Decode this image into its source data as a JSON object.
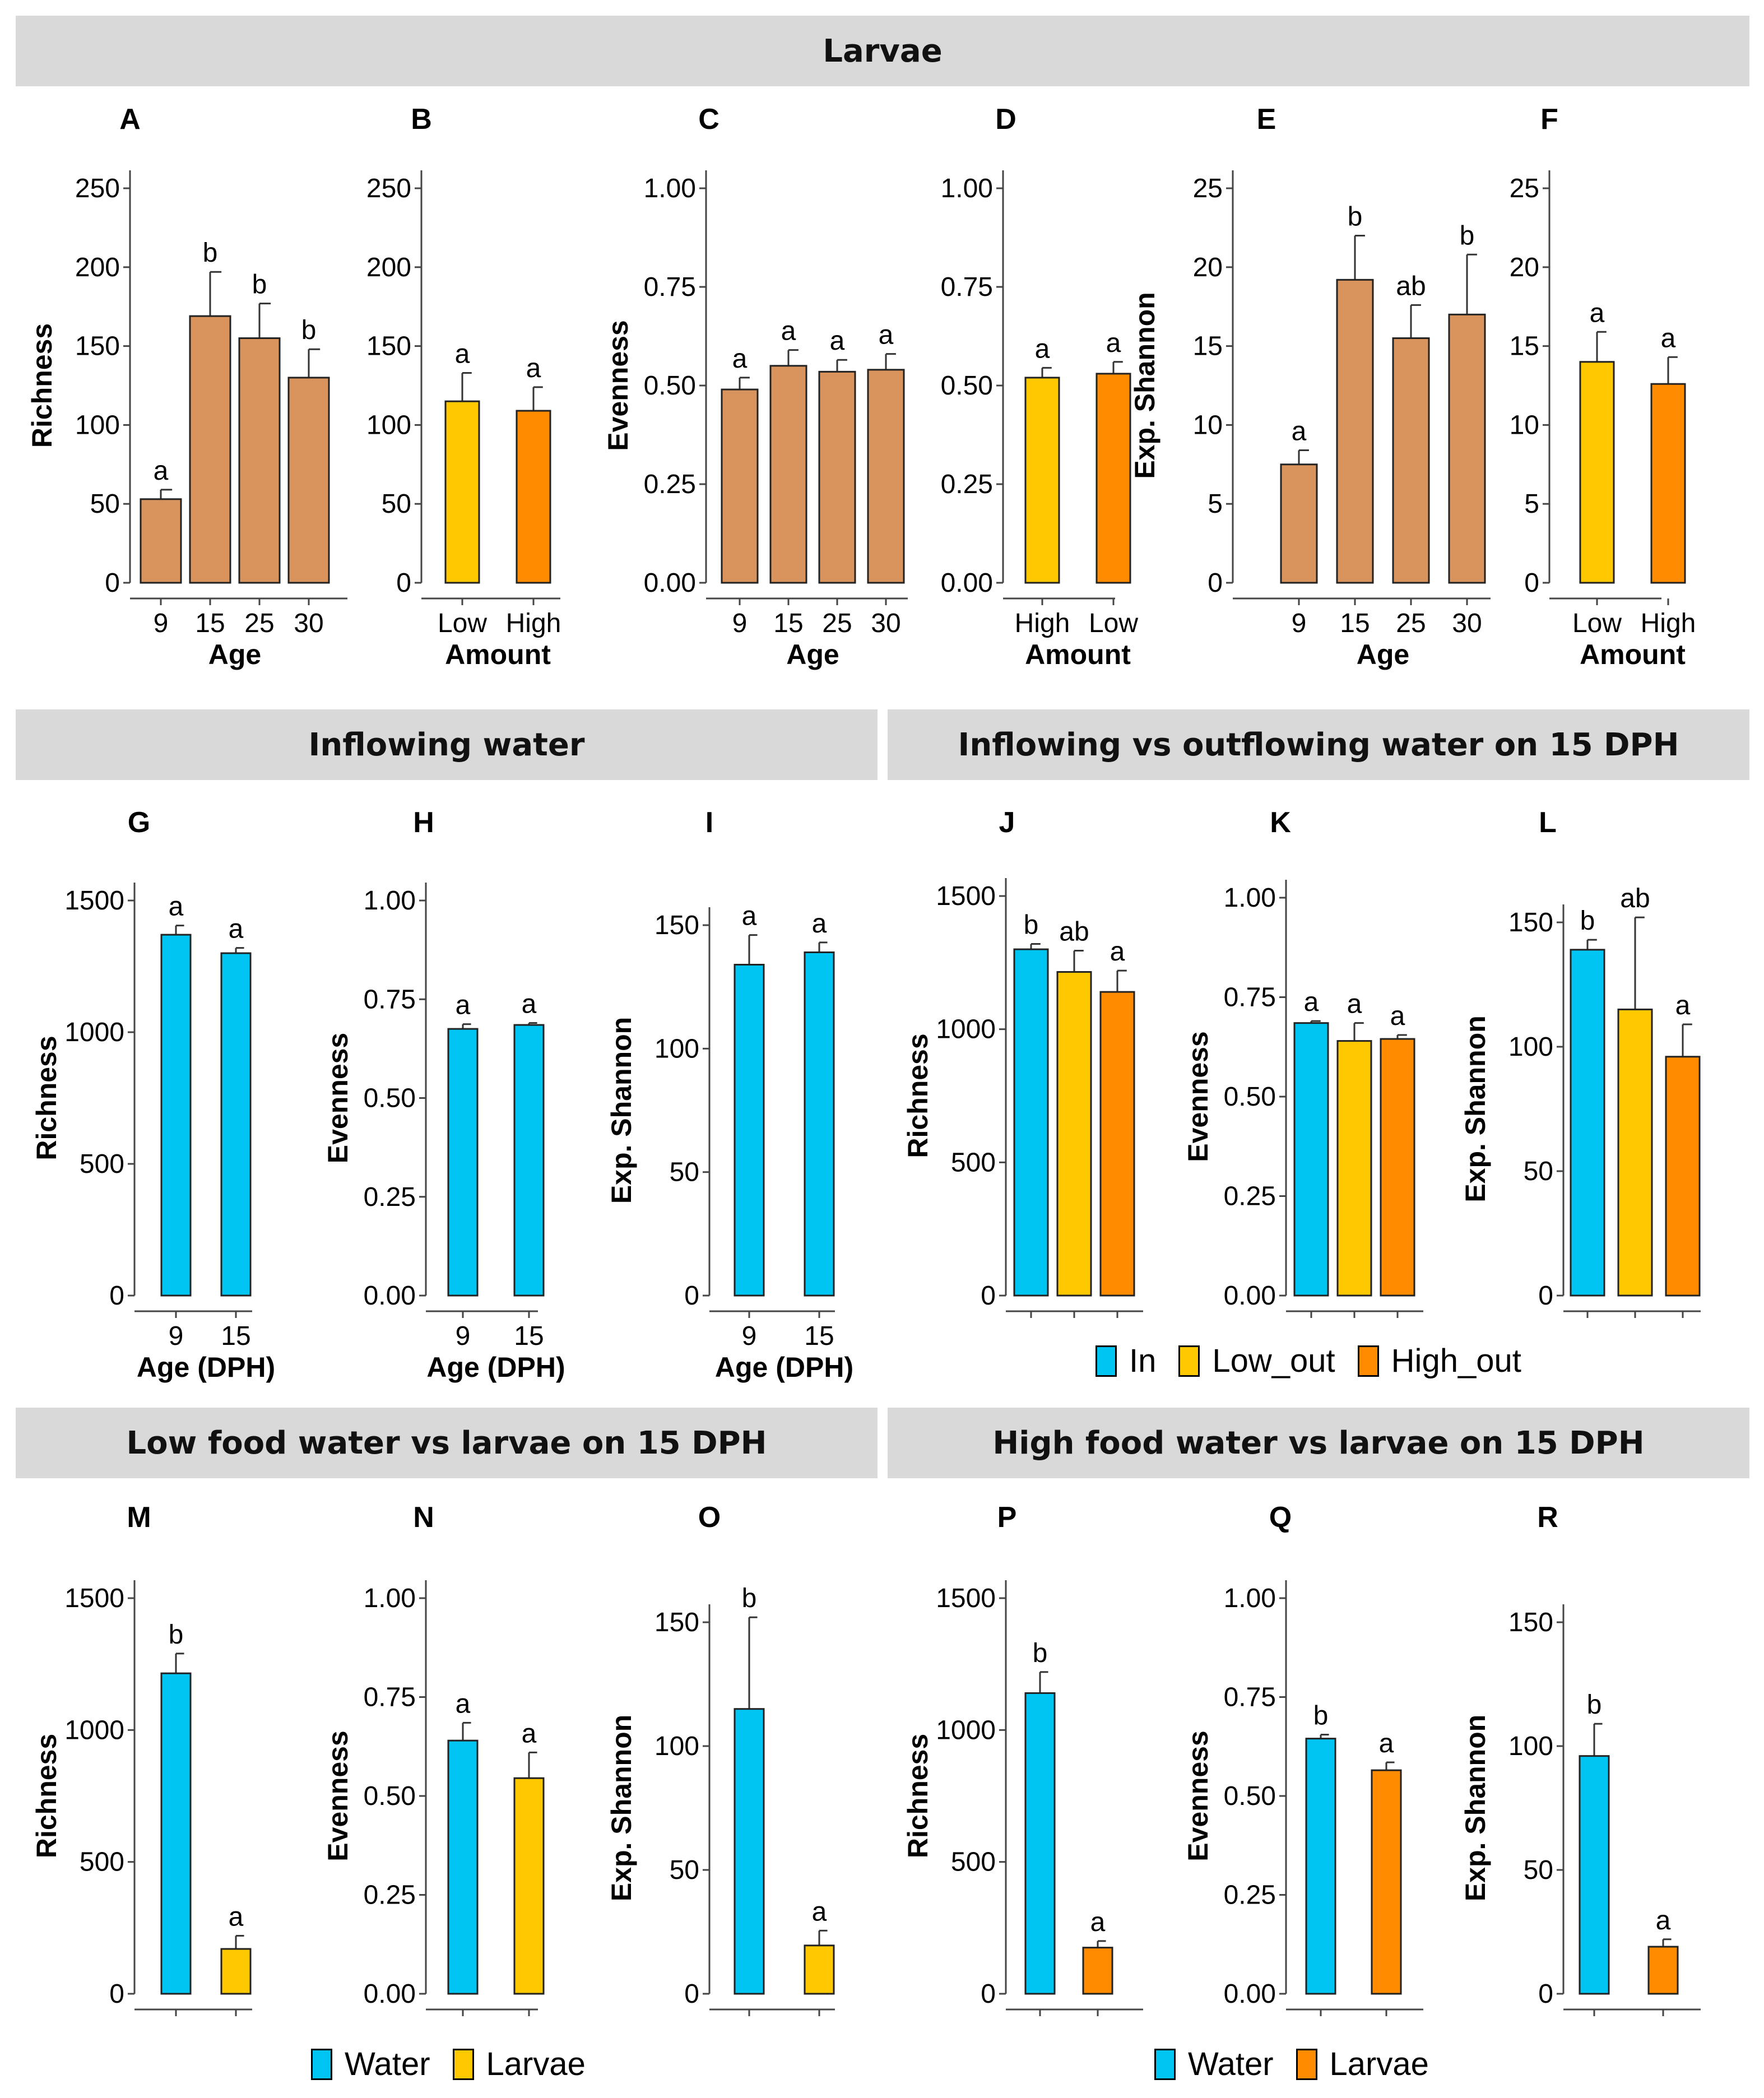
{
  "banners": {
    "larvae": "Larvae",
    "inflowing": "Inflowing water",
    "in_vs_out": "Inflowing vs outflowing water on 15 DPH",
    "low_food": "Low food water vs larvae on 15 DPH",
    "high_food": "High food water vs larvae on 15 DPH"
  },
  "legends": {
    "inout": [
      {
        "label": "In",
        "color": "#00c5f3"
      },
      {
        "label": "Low_out",
        "color": "#ffc800"
      },
      {
        "label": "High_out",
        "color": "#ff8c00"
      }
    ],
    "low_food": [
      {
        "label": "Water",
        "color": "#00c5f3"
      },
      {
        "label": "Larvae",
        "color": "#ffc800"
      }
    ],
    "high_food": [
      {
        "label": "Water",
        "color": "#00c5f3"
      },
      {
        "label": "Larvae",
        "color": "#ff8c00"
      }
    ]
  },
  "chart_data": [
    {
      "id": "A",
      "type": "bar",
      "ylabel": "Richness",
      "xlabel": "Age",
      "ylim": [
        0,
        250
      ],
      "yticks": [
        "0",
        "50",
        "100",
        "150",
        "200",
        "250"
      ],
      "categories": [
        "9",
        "15",
        "25",
        "30"
      ],
      "values": [
        53,
        169,
        155,
        130
      ],
      "errors": [
        6,
        28,
        22,
        18
      ],
      "letters": [
        "a",
        "b",
        "b",
        "b"
      ],
      "colors": [
        "#d9935c",
        "#d9935c",
        "#d9935c",
        "#d9935c"
      ]
    },
    {
      "id": "B",
      "type": "bar",
      "ylabel": "",
      "xlabel": "Amount",
      "ylim": [
        0,
        250
      ],
      "yticks": [
        "0",
        "50",
        "100",
        "150",
        "200",
        "250"
      ],
      "categories": [
        "Low",
        "High"
      ],
      "values": [
        115,
        109
      ],
      "errors": [
        18,
        15
      ],
      "letters": [
        "a",
        "a"
      ],
      "colors": [
        "#ffc800",
        "#ff8c00"
      ]
    },
    {
      "id": "C",
      "type": "bar",
      "ylabel": "Evenness",
      "xlabel": "Age",
      "ylim": [
        0,
        1
      ],
      "yticks": [
        "0.00",
        "0.25",
        "0.50",
        "0.75",
        "1.00"
      ],
      "categories": [
        "9",
        "15",
        "25",
        "30"
      ],
      "values": [
        0.49,
        0.55,
        0.535,
        0.54
      ],
      "errors": [
        0.03,
        0.04,
        0.03,
        0.04
      ],
      "letters": [
        "a",
        "a",
        "a",
        "a"
      ],
      "colors": [
        "#d9935c",
        "#d9935c",
        "#d9935c",
        "#d9935c"
      ]
    },
    {
      "id": "D",
      "type": "bar",
      "ylabel": "",
      "xlabel": "Amount",
      "ylim": [
        0,
        1
      ],
      "yticks": [
        "0.00",
        "0.25",
        "0.50",
        "0.75",
        "1.00"
      ],
      "categories": [
        "High",
        "Low"
      ],
      "values": [
        0.52,
        0.53
      ],
      "errors": [
        0.025,
        0.03
      ],
      "letters": [
        "a",
        "a"
      ],
      "colors": [
        "#ffc800",
        "#ff8c00"
      ]
    },
    {
      "id": "E",
      "type": "bar",
      "ylabel": "Exp. Shannon",
      "xlabel": "Age",
      "ylim": [
        0,
        25
      ],
      "yticks": [
        "0",
        "5",
        "10",
        "15",
        "20",
        "25"
      ],
      "categories": [
        "9",
        "15",
        "25",
        "30"
      ],
      "values": [
        7.5,
        19.2,
        15.5,
        17
      ],
      "errors": [
        0.9,
        2.8,
        2.1,
        3.8
      ],
      "letters": [
        "a",
        "b",
        "ab",
        "b"
      ],
      "colors": [
        "#d9935c",
        "#d9935c",
        "#d9935c",
        "#d9935c"
      ]
    },
    {
      "id": "F",
      "type": "bar",
      "ylabel": "",
      "xlabel": "Amount",
      "ylim": [
        0,
        25
      ],
      "yticks": [
        "0",
        "5",
        "10",
        "15",
        "20",
        "25"
      ],
      "categories": [
        "Low",
        "High"
      ],
      "values": [
        14,
        12.6
      ],
      "errors": [
        1.9,
        1.7
      ],
      "letters": [
        "a",
        "a"
      ],
      "colors": [
        "#ffc800",
        "#ff8c00"
      ]
    },
    {
      "id": "G",
      "type": "bar",
      "ylabel": "Richness",
      "xlabel": "Age (DPH)",
      "ylim": [
        0,
        1500
      ],
      "yticks": [
        "0",
        "500",
        "1000",
        "1500"
      ],
      "categories": [
        "9",
        "15"
      ],
      "values": [
        1370,
        1300
      ],
      "errors": [
        35,
        20
      ],
      "letters": [
        "a",
        "a"
      ],
      "colors": [
        "#00c5f3",
        "#00c5f3"
      ]
    },
    {
      "id": "H",
      "type": "bar",
      "ylabel": "Evenness",
      "xlabel": "Age (DPH)",
      "ylim": [
        0,
        1
      ],
      "yticks": [
        "0.00",
        "0.25",
        "0.50",
        "0.75",
        "1.00"
      ],
      "categories": [
        "9",
        "15"
      ],
      "values": [
        0.675,
        0.685
      ],
      "errors": [
        0.012,
        0.005
      ],
      "letters": [
        "a",
        "a"
      ],
      "colors": [
        "#00c5f3",
        "#00c5f3"
      ]
    },
    {
      "id": "I",
      "type": "bar",
      "ylabel": "Exp. Shannon",
      "xlabel": "Age (DPH)",
      "ylim": [
        0,
        150
      ],
      "yticks": [
        "0",
        "50",
        "100",
        "150"
      ],
      "categories": [
        "9",
        "15"
      ],
      "values": [
        134,
        139
      ],
      "errors": [
        12,
        4
      ],
      "letters": [
        "a",
        "a"
      ],
      "colors": [
        "#00c5f3",
        "#00c5f3"
      ]
    },
    {
      "id": "J",
      "type": "bar",
      "ylabel": "Richness",
      "xlabel": "",
      "ylim": [
        0,
        1500
      ],
      "yticks": [
        "0",
        "500",
        "1000",
        "1500"
      ],
      "categories": [
        "In",
        "Low_out",
        "High_out"
      ],
      "values": [
        1300,
        1215,
        1140
      ],
      "errors": [
        20,
        80,
        80
      ],
      "letters": [
        "b",
        "ab",
        "a"
      ],
      "colors": [
        "#00c5f3",
        "#ffc800",
        "#ff8c00"
      ]
    },
    {
      "id": "K",
      "type": "bar",
      "ylabel": "Evenness",
      "xlabel": "",
      "ylim": [
        0,
        1
      ],
      "yticks": [
        "0.00",
        "0.25",
        "0.50",
        "0.75",
        "1.00"
      ],
      "categories": [
        "In",
        "Low_out",
        "High_out"
      ],
      "values": [
        0.685,
        0.64,
        0.645
      ],
      "errors": [
        0.005,
        0.045,
        0.01
      ],
      "letters": [
        "a",
        "a",
        "a"
      ],
      "colors": [
        "#00c5f3",
        "#ffc800",
        "#ff8c00"
      ]
    },
    {
      "id": "L",
      "type": "bar",
      "ylabel": "Exp. Shannon",
      "xlabel": "",
      "ylim": [
        0,
        150
      ],
      "yticks": [
        "0",
        "50",
        "100",
        "150"
      ],
      "categories": [
        "In",
        "Low_out",
        "High_out"
      ],
      "values": [
        139,
        115,
        96
      ],
      "errors": [
        4,
        37,
        13
      ],
      "letters": [
        "b",
        "ab",
        "a"
      ],
      "colors": [
        "#00c5f3",
        "#ffc800",
        "#ff8c00"
      ]
    },
    {
      "id": "M",
      "type": "bar",
      "ylabel": "Richness",
      "xlabel": "",
      "ylim": [
        0,
        1500
      ],
      "yticks": [
        "0",
        "500",
        "1000",
        "1500"
      ],
      "categories": [
        "Water",
        "Larvae"
      ],
      "values": [
        1215,
        170
      ],
      "errors": [
        75,
        50
      ],
      "letters": [
        "b",
        "a"
      ],
      "colors": [
        "#00c5f3",
        "#ffc800"
      ]
    },
    {
      "id": "N",
      "type": "bar",
      "ylabel": "Evenness",
      "xlabel": "",
      "ylim": [
        0,
        1
      ],
      "yticks": [
        "0.00",
        "0.25",
        "0.50",
        "0.75",
        "1.00"
      ],
      "categories": [
        "Water",
        "Larvae"
      ],
      "values": [
        0.64,
        0.545
      ],
      "errors": [
        0.045,
        0.065
      ],
      "letters": [
        "a",
        "a"
      ],
      "colors": [
        "#00c5f3",
        "#ffc800"
      ]
    },
    {
      "id": "O",
      "type": "bar",
      "ylabel": "Exp. Shannon",
      "xlabel": "",
      "ylim": [
        0,
        150
      ],
      "yticks": [
        "0",
        "50",
        "100",
        "150"
      ],
      "categories": [
        "Water",
        "Larvae"
      ],
      "values": [
        115,
        19.5
      ],
      "errors": [
        37,
        6
      ],
      "letters": [
        "b",
        "a"
      ],
      "colors": [
        "#00c5f3",
        "#ffc800"
      ]
    },
    {
      "id": "P",
      "type": "bar",
      "ylabel": "Richness",
      "xlabel": "",
      "ylim": [
        0,
        1500
      ],
      "yticks": [
        "0",
        "500",
        "1000",
        "1500"
      ],
      "categories": [
        "Water",
        "Larvae"
      ],
      "values": [
        1140,
        175
      ],
      "errors": [
        80,
        25
      ],
      "letters": [
        "b",
        "a"
      ],
      "colors": [
        "#00c5f3",
        "#ff8c00"
      ]
    },
    {
      "id": "Q",
      "type": "bar",
      "ylabel": "Evenness",
      "xlabel": "",
      "ylim": [
        0,
        1
      ],
      "yticks": [
        "0.00",
        "0.25",
        "0.50",
        "0.75",
        "1.00"
      ],
      "categories": [
        "Water",
        "Larvae"
      ],
      "values": [
        0.645,
        0.565
      ],
      "errors": [
        0.01,
        0.02
      ],
      "letters": [
        "b",
        "a"
      ],
      "colors": [
        "#00c5f3",
        "#ff8c00"
      ]
    },
    {
      "id": "R",
      "type": "bar",
      "ylabel": "Exp. Shannon",
      "xlabel": "",
      "ylim": [
        0,
        150
      ],
      "yticks": [
        "0",
        "50",
        "100",
        "150"
      ],
      "categories": [
        "Water",
        "Larvae"
      ],
      "values": [
        96,
        19
      ],
      "errors": [
        13,
        3
      ],
      "letters": [
        "b",
        "a"
      ],
      "colors": [
        "#00c5f3",
        "#ff8c00"
      ]
    }
  ]
}
